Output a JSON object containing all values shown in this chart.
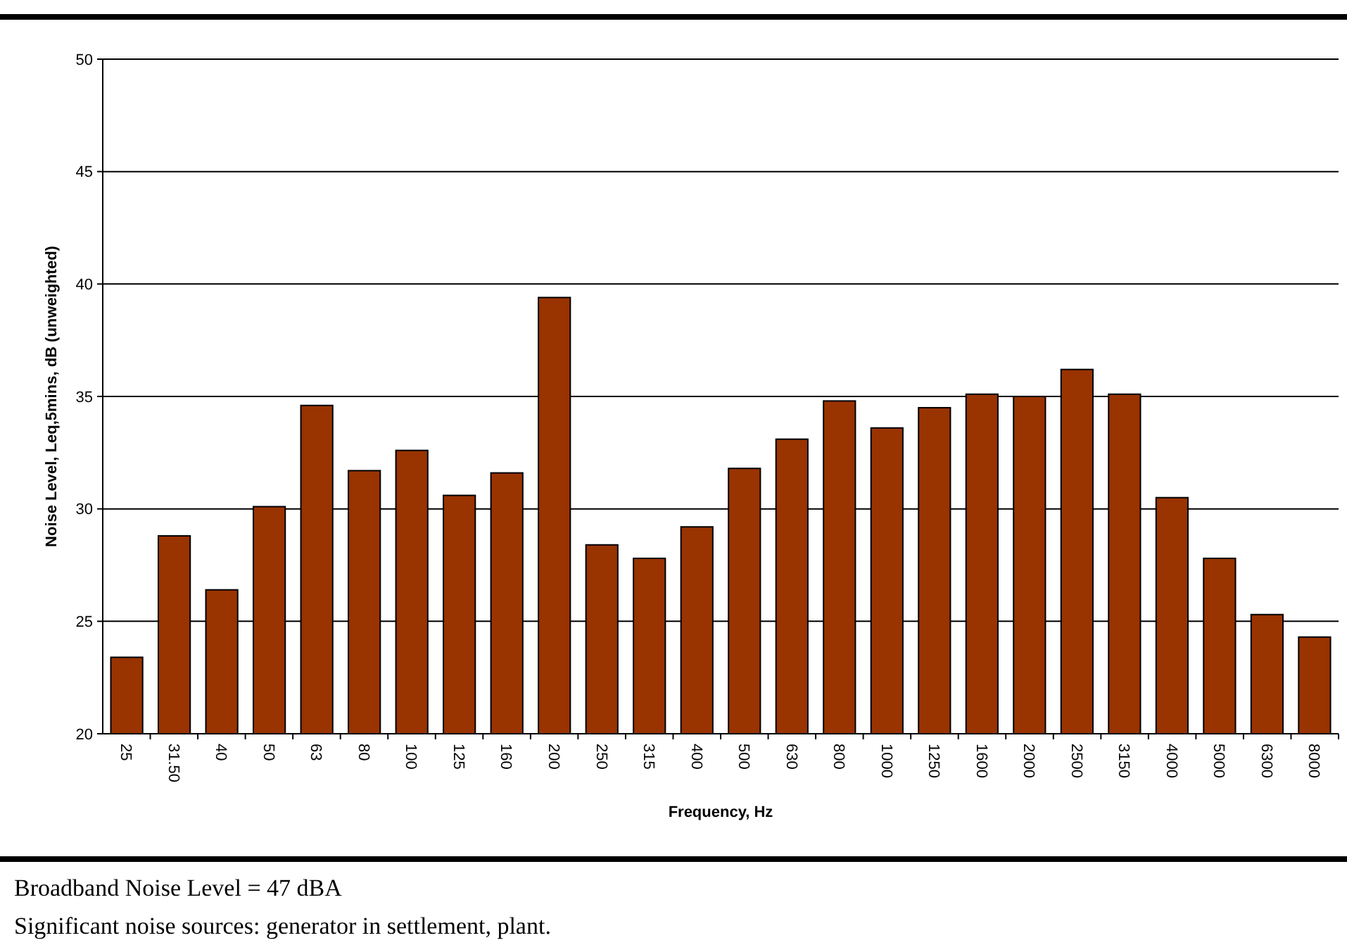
{
  "chart_data": {
    "type": "bar",
    "xlabel": "Frequency, Hz",
    "ylabel": "Noise Level, Leq,5mins, dB (unweighted)",
    "categories": [
      "25",
      "31.50",
      "40",
      "50",
      "63",
      "80",
      "100",
      "125",
      "160",
      "200",
      "250",
      "315",
      "400",
      "500",
      "630",
      "800",
      "1000",
      "1250",
      "1600",
      "2000",
      "2500",
      "3150",
      "4000",
      "5000",
      "6300",
      "8000"
    ],
    "values": [
      23.4,
      28.8,
      26.4,
      30.1,
      34.6,
      31.7,
      32.6,
      30.6,
      31.6,
      39.4,
      28.4,
      27.8,
      29.2,
      31.8,
      33.1,
      34.8,
      33.6,
      34.5,
      35.1,
      35.0,
      36.2,
      35.1,
      30.5,
      27.8,
      25.3,
      24.3
    ],
    "color": "#993300",
    "ylim": [
      20,
      50
    ],
    "yticks": [
      20,
      25,
      30,
      35,
      40,
      45,
      50
    ],
    "grid": "y",
    "annotations": [
      "Broadband Noise Level = 47 dBA",
      "Significant noise sources: generator in settlement, plant."
    ]
  }
}
